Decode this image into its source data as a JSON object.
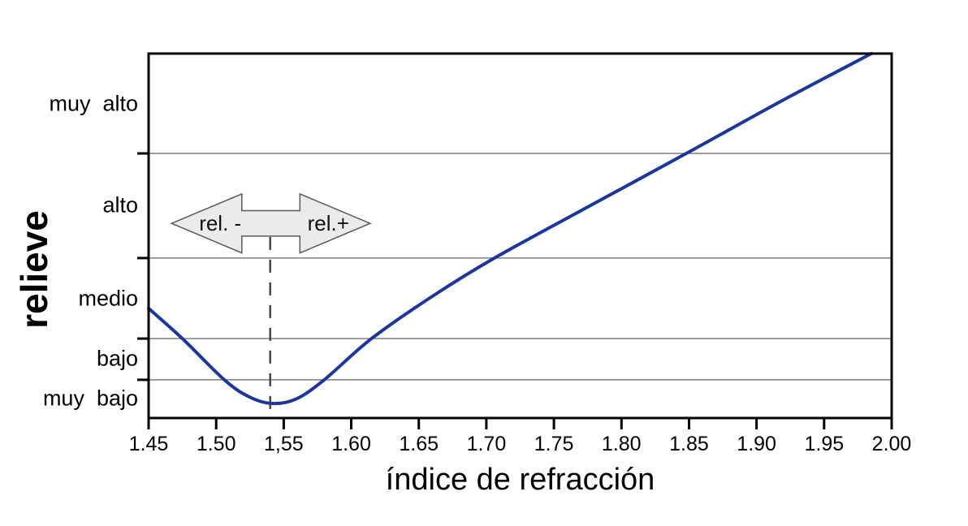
{
  "figure": {
    "background": "#ffffff"
  },
  "chart_data": {
    "type": "line",
    "title": "",
    "xlabel": "índice de refracción",
    "ylabel": "relieve",
    "x_range": [
      1.45,
      2.0
    ],
    "grid": "horizontal-only",
    "frame_color": "#000000",
    "gridline_color": "#7f7f7f",
    "x_ticks": [
      {
        "value": 1.45,
        "label": "1.45"
      },
      {
        "value": 1.5,
        "label": "1.50"
      },
      {
        "value": 1.55,
        "label": "1,55"
      },
      {
        "value": 1.6,
        "label": "1.60"
      },
      {
        "value": 1.65,
        "label": "1.65"
      },
      {
        "value": 1.7,
        "label": "1.70"
      },
      {
        "value": 1.75,
        "label": "1.75"
      },
      {
        "value": 1.8,
        "label": "1.80"
      },
      {
        "value": 1.85,
        "label": "1.85"
      },
      {
        "value": 1.9,
        "label": "1.90"
      },
      {
        "value": 1.95,
        "label": "1.95"
      },
      {
        "value": 2.0,
        "label": "2.00"
      }
    ],
    "y_bands": [
      {
        "label": "muy  bajo",
        "from_pct": 0,
        "to_pct": 10.5
      },
      {
        "label": "bajo",
        "from_pct": 10.5,
        "to_pct": 21.8
      },
      {
        "label": "medio",
        "from_pct": 21.8,
        "to_pct": 43.9
      },
      {
        "label": "alto",
        "from_pct": 43.9,
        "to_pct": 72.6
      },
      {
        "label": "muy  alto",
        "from_pct": 72.6,
        "to_pct": 100
      }
    ],
    "gridline_pcts": [
      10.5,
      21.8,
      43.9,
      72.6
    ],
    "series": [
      {
        "name": "relieve",
        "color": "#1b379e",
        "points_n_vs_relief_pct": [
          [
            1.45,
            30.1
          ],
          [
            1.475,
            21.8
          ],
          [
            1.506,
            10.5
          ],
          [
            1.524,
            5.9
          ],
          [
            1.541,
            4.0
          ],
          [
            1.559,
            5.2
          ],
          [
            1.58,
            10.5
          ],
          [
            1.615,
            21.8
          ],
          [
            1.66,
            33.4
          ],
          [
            1.706,
            43.9
          ],
          [
            1.776,
            58.1
          ],
          [
            1.848,
            72.6
          ],
          [
            1.918,
            86.9
          ],
          [
            1.985,
            100.0
          ]
        ]
      }
    ],
    "curve_minimum_n": 1.54,
    "reference_line": {
      "x": 1.54,
      "top_pct": 49.7,
      "style": "dashed",
      "color": "#3f3f3f"
    },
    "annotation_arrow": {
      "label_left": "rel. -",
      "label_right": "rel.+",
      "x_left_tip": 1.467,
      "x_right_tip": 1.614,
      "center_pct": 53.4,
      "head_height_pct": 16.2,
      "shaft_height_pct": 7.0,
      "head_width_n": 0.052,
      "label_left_x": 1.503,
      "label_right_x": 1.583,
      "fill": "#ebebeb",
      "stroke": "#5a5a5a"
    }
  }
}
